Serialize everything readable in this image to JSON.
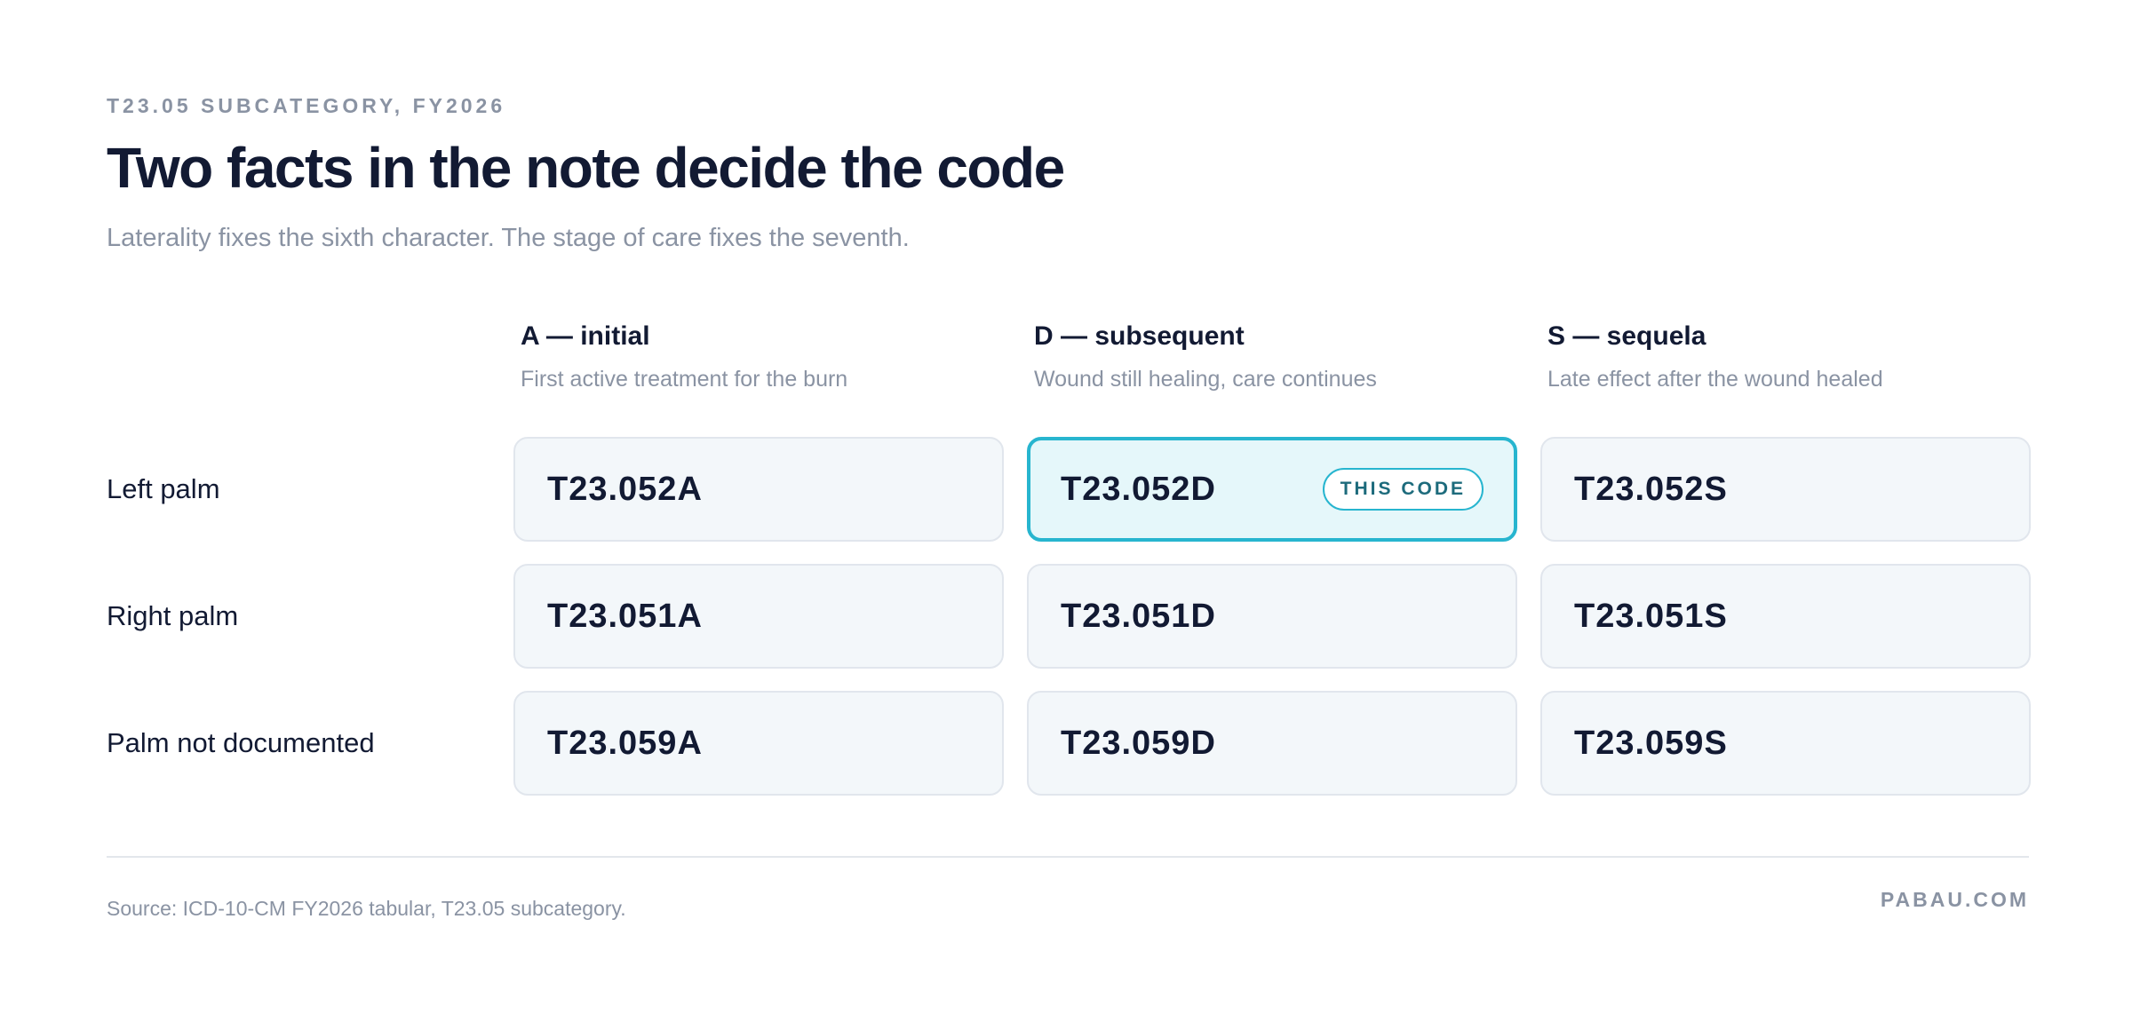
{
  "header": {
    "eyebrow": "T23.05 SUBCATEGORY, FY2026",
    "title": "Two facts in the note decide the code",
    "subtitle": "Laterality fixes the sixth character. The stage of care fixes the seventh."
  },
  "columns": [
    {
      "title": "A — initial",
      "description": "First active treatment for the burn"
    },
    {
      "title": "D — subsequent",
      "description": "Wound still healing, care continues"
    },
    {
      "title": "S — sequela",
      "description": "Late effect after the wound healed"
    }
  ],
  "rows": [
    {
      "label": "Left palm",
      "codes": [
        "T23.052A",
        "T23.052D",
        "T23.052S"
      ]
    },
    {
      "label": "Right palm",
      "codes": [
        "T23.051A",
        "T23.051D",
        "T23.051S"
      ]
    },
    {
      "label": "Palm not documented",
      "codes": [
        "T23.059A",
        "T23.059D",
        "T23.059S"
      ]
    }
  ],
  "selected": {
    "code": "T23.052D",
    "badge": "THIS CODE"
  },
  "footer": {
    "source": "Source: ICD-10-CM FY2026 tabular, T23.05 subcategory.",
    "brand": "PABAU.COM"
  },
  "colors": {
    "text_primary": "#121a33",
    "text_muted": "#8a93a3",
    "cell_background": "#f3f7fa",
    "cell_border": "#e1e6ed",
    "selected_border": "#27b5cf",
    "selected_background": "#e5f7fa",
    "badge_text": "#1d6b7c"
  }
}
